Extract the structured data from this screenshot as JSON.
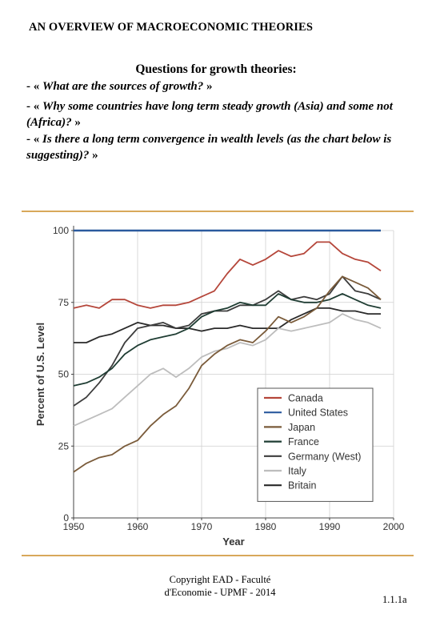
{
  "page": {
    "title": "AN OVERVIEW OF MACROECONOMIC THEORIES",
    "questions_title": "Questions for growth theories:",
    "questions": [
      {
        "prefix": "- «",
        "text": "What are the sources of growth?",
        "suffix": "»"
      },
      {
        "prefix": "- «",
        "text": "Why some countries have long term steady growth (Asia) and some not (Africa)?",
        "suffix": "»"
      },
      {
        "prefix": "- «",
        "text": "Is there a long term convergence in wealth levels (as the chart below is suggesting)?",
        "suffix": "»"
      }
    ],
    "footer_line1": "Copyright EAD - Faculté",
    "footer_line2": "d'Economie - UPMF - 2014",
    "page_number": "1.1.1a"
  },
  "chart_data": {
    "type": "line",
    "title": "",
    "xlabel": "Year",
    "ylabel": "Percent of U.S. Level",
    "xlim": [
      1950,
      2000
    ],
    "ylim": [
      0,
      100
    ],
    "xticks": [
      1950,
      1960,
      1970,
      1980,
      1990,
      2000
    ],
    "yticks": [
      0,
      25,
      50,
      75,
      100
    ],
    "legend_position": "bottom-right",
    "series": [
      {
        "name": "Canada",
        "color": "#b5463a",
        "x": [
          1950,
          1952,
          1954,
          1956,
          1958,
          1960,
          1962,
          1964,
          1966,
          1968,
          1970,
          1972,
          1974,
          1976,
          1978,
          1980,
          1982,
          1984,
          1986,
          1988,
          1990,
          1992,
          1994,
          1996,
          1998
        ],
        "y": [
          73,
          74,
          73,
          76,
          76,
          74,
          73,
          74,
          74,
          75,
          77,
          79,
          85,
          90,
          88,
          90,
          93,
          91,
          92,
          96,
          96,
          92,
          90,
          89,
          86
        ]
      },
      {
        "name": "United States",
        "color": "#2b5a9e",
        "x": [
          1950,
          1960,
          1970,
          1980,
          1990,
          1998
        ],
        "y": [
          100,
          100,
          100,
          100,
          100,
          100
        ]
      },
      {
        "name": "Japan",
        "color": "#7a5b3a",
        "x": [
          1950,
          1952,
          1954,
          1956,
          1958,
          1960,
          1962,
          1964,
          1966,
          1968,
          1970,
          1972,
          1974,
          1976,
          1978,
          1980,
          1982,
          1984,
          1986,
          1988,
          1990,
          1992,
          1994,
          1996,
          1998
        ],
        "y": [
          16,
          19,
          21,
          22,
          25,
          27,
          32,
          36,
          39,
          45,
          53,
          57,
          60,
          62,
          61,
          65,
          70,
          68,
          70,
          73,
          79,
          84,
          82,
          80,
          76
        ]
      },
      {
        "name": "France",
        "color": "#1f3d33",
        "x": [
          1950,
          1952,
          1954,
          1956,
          1958,
          1960,
          1962,
          1964,
          1966,
          1968,
          1970,
          1972,
          1974,
          1976,
          1978,
          1980,
          1982,
          1984,
          1986,
          1988,
          1990,
          1992,
          1994,
          1996,
          1998
        ],
        "y": [
          46,
          47,
          49,
          52,
          57,
          60,
          62,
          63,
          64,
          66,
          70,
          72,
          73,
          75,
          74,
          74,
          78,
          76,
          75,
          75,
          76,
          78,
          76,
          74,
          73
        ]
      },
      {
        "name": "Germany (West)",
        "color": "#3d3d3d",
        "x": [
          1950,
          1952,
          1954,
          1956,
          1958,
          1960,
          1962,
          1964,
          1966,
          1968,
          1970,
          1972,
          1974,
          1976,
          1978,
          1980,
          1982,
          1984,
          1986,
          1988,
          1990,
          1992,
          1994,
          1996,
          1998
        ],
        "y": [
          39,
          42,
          47,
          53,
          61,
          66,
          67,
          68,
          66,
          67,
          71,
          72,
          72,
          74,
          74,
          76,
          79,
          76,
          77,
          76,
          78,
          84,
          79,
          78,
          76
        ]
      },
      {
        "name": "Italy",
        "color": "#bdbdbd",
        "x": [
          1950,
          1952,
          1954,
          1956,
          1958,
          1960,
          1962,
          1964,
          1966,
          1968,
          1970,
          1972,
          1974,
          1976,
          1978,
          1980,
          1982,
          1984,
          1986,
          1988,
          1990,
          1992,
          1994,
          1996,
          1998
        ],
        "y": [
          32,
          34,
          36,
          38,
          42,
          46,
          50,
          52,
          49,
          52,
          56,
          58,
          59,
          61,
          60,
          62,
          66,
          65,
          66,
          67,
          68,
          71,
          69,
          68,
          66
        ]
      },
      {
        "name": "Britain",
        "color": "#2a2a2a",
        "x": [
          1950,
          1952,
          1954,
          1956,
          1958,
          1960,
          1962,
          1964,
          1966,
          1968,
          1970,
          1972,
          1974,
          1976,
          1978,
          1980,
          1982,
          1984,
          1986,
          1988,
          1990,
          1992,
          1994,
          1996,
          1998
        ],
        "y": [
          61,
          61,
          63,
          64,
          66,
          68,
          67,
          67,
          66,
          66,
          65,
          66,
          66,
          67,
          66,
          66,
          66,
          69,
          71,
          73,
          73,
          72,
          72,
          71,
          71
        ]
      }
    ]
  }
}
